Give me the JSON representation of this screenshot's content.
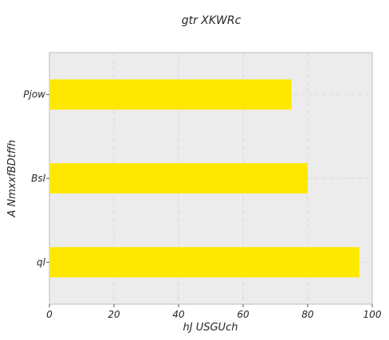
{
  "chart_data": {
    "type": "bar",
    "orientation": "horizontal",
    "title": "gtr  XKWRc",
    "xlabel": "hJ USGUch",
    "ylabel": "A NmxxfBDtffh",
    "categories": [
      "Pjow",
      "Bsl",
      "ql"
    ],
    "values": [
      75,
      80,
      96
    ],
    "xlim": [
      0,
      100
    ],
    "xticks": [
      0,
      20,
      40,
      60,
      80,
      100
    ],
    "grid": true,
    "bar_color": "#FFE800",
    "plot_background": "#ECECEC"
  }
}
